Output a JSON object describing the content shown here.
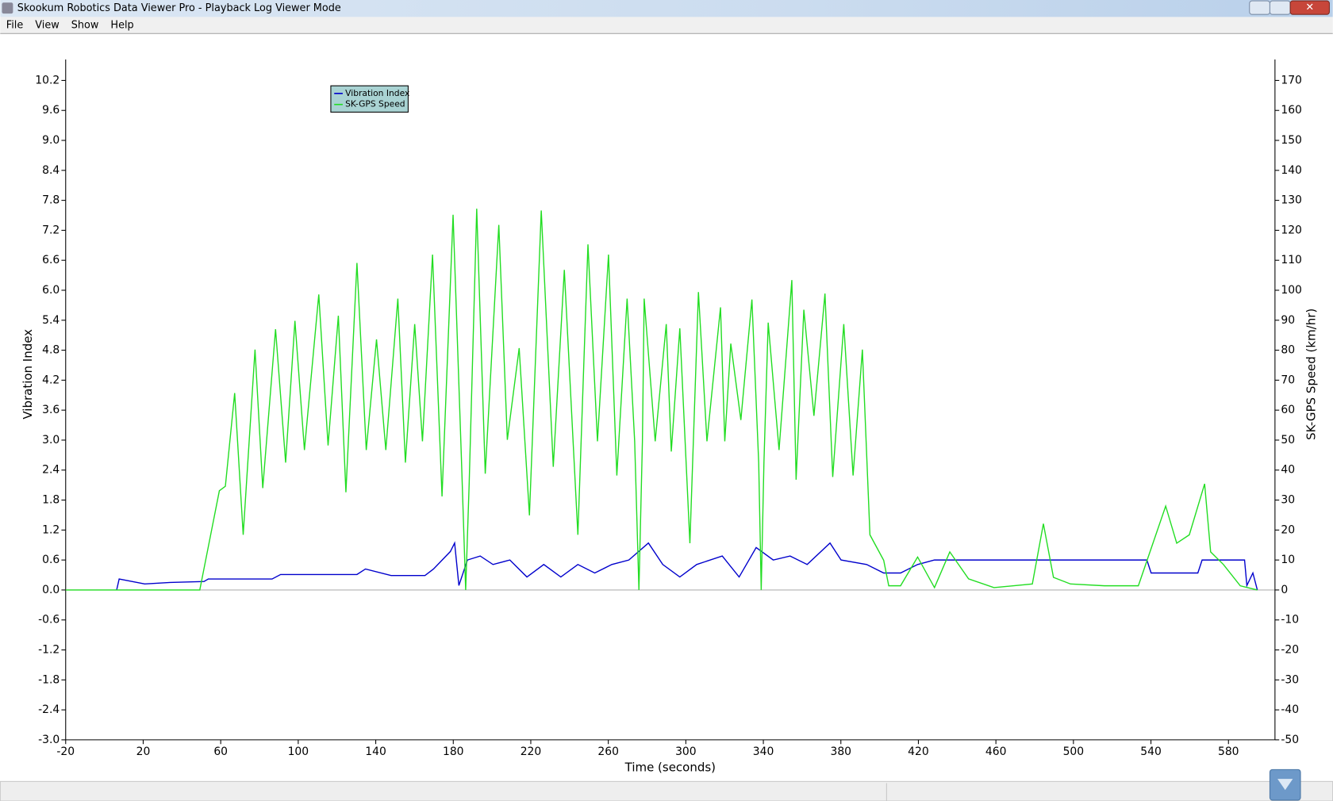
{
  "window": {
    "title": "Skookum Robotics Data Viewer Pro - Playback Log Viewer Mode",
    "menu": [
      "File",
      "View",
      "Show",
      "Help"
    ]
  },
  "chart_data": {
    "type": "line",
    "xlabel": "Time (seconds)",
    "ylabel": "Vibration Index",
    "y2label": "SK-GPS Speed (km/hr)",
    "xlim": [
      -20,
      604
    ],
    "ylim": [
      -3,
      10.62
    ],
    "y2lim": [
      -50,
      177
    ],
    "xticks": [
      -20,
      20,
      60,
      100,
      140,
      180,
      220,
      260,
      300,
      340,
      380,
      420,
      460,
      500,
      540,
      580
    ],
    "yticks": [
      {
        "value": -3,
        "label": "-3.0"
      },
      -2.4,
      -1.8,
      -1.2,
      -0.6,
      {
        "value": 0,
        "label": "0.0"
      },
      0.6,
      1.2,
      1.8,
      2.4,
      {
        "value": 3,
        "label": "3.0"
      },
      3.6,
      4.2,
      4.8,
      5.4,
      {
        "value": 6,
        "label": "6.0"
      },
      6.6,
      7.2,
      7.8,
      8.4,
      {
        "value": 9,
        "label": "9.0"
      },
      9.6,
      10.2
    ],
    "y2ticks": [
      -50,
      -40,
      -30,
      -20,
      -10,
      0,
      10,
      20,
      30,
      40,
      50,
      60,
      70,
      80,
      90,
      100,
      110,
      120,
      130,
      140,
      150,
      160,
      170
    ],
    "legend": "upper-left",
    "series": [
      {
        "name": "Vibration Index",
        "color": "#0000cc",
        "axis": "y",
        "x": [
          6.3,
          7.6,
          20.8,
          33.9,
          51.4,
          53.6,
          86.5,
          90.9,
          130.3,
          134.7,
          147.9,
          165.4,
          169.8,
          178.5,
          180.7,
          182.9,
          187.3,
          193.9,
          200.5,
          209.2,
          218.0,
          226.7,
          235.5,
          244.3,
          253.0,
          261.8,
          270.6,
          280.7,
          288.1,
          296.9,
          305.6,
          318.8,
          327.5,
          336.3,
          345.1,
          353.8,
          362.6,
          374.4,
          380.1,
          393.3,
          402.1,
          410.8,
          419.6,
          428.3,
          537.9,
          540.1,
          564.2,
          566.4,
          588.3,
          589.5,
          592.6,
          594.9
        ],
        "values": [
          0,
          0.22,
          0.12,
          0.15,
          0.17,
          0.22,
          0.22,
          0.31,
          0.31,
          0.42,
          0.29,
          0.29,
          0.42,
          0.77,
          0.94,
          0.09,
          0.6,
          0.68,
          0.51,
          0.6,
          0.26,
          0.51,
          0.26,
          0.51,
          0.34,
          0.51,
          0.6,
          0.94,
          0.51,
          0.26,
          0.51,
          0.68,
          0.26,
          0.85,
          0.6,
          0.68,
          0.51,
          0.94,
          0.6,
          0.51,
          0.34,
          0.34,
          0.51,
          0.6,
          0.6,
          0.34,
          0.34,
          0.6,
          0.6,
          0.09,
          0.34,
          0
        ]
      },
      {
        "name": "SK-GPS Speed",
        "color": "#22dd22",
        "axis": "y2",
        "x": [
          -20,
          49.2,
          59.3,
          62.4,
          67.2,
          71.6,
          77.7,
          81.7,
          88.3,
          93.5,
          98.3,
          103.2,
          110.6,
          115.4,
          120.7,
          124.6,
          130.3,
          135.1,
          140.4,
          145.2,
          151.4,
          155.3,
          160.1,
          164.1,
          169.3,
          174.2,
          179.9,
          184.2,
          186.4,
          188.2,
          192.1,
          196.5,
          203.5,
          207.9,
          214.0,
          219.3,
          225.4,
          231.6,
          237.3,
          244.3,
          249.5,
          254.4,
          260.1,
          264.4,
          269.7,
          273.6,
          275.8,
          277.6,
          278.5,
          284.2,
          289.9,
          292.5,
          296.9,
          302.1,
          306.5,
          310.9,
          317.9,
          320.1,
          323.2,
          328.4,
          334.1,
          337.6,
          338.9,
          340.3,
          342.5,
          348.1,
          354.7,
          356.9,
          360.9,
          366.1,
          371.8,
          375.8,
          381.5,
          386.3,
          391.1,
          395.0,
          402.1,
          404.7,
          410.8,
          419.6,
          428.3,
          436.2,
          445.9,
          459.0,
          478.8,
          484.5,
          489.7,
          498.5,
          516.0,
          533.5,
          547.6,
          553.3,
          559.8,
          567.7,
          570.8,
          577.4,
          586.1,
          594.9
        ],
        "values": [
          0,
          0,
          33.1,
          34.6,
          65.7,
          18.4,
          80.2,
          34.0,
          87.0,
          42.5,
          89.8,
          46.7,
          98.6,
          48.2,
          91.5,
          32.6,
          109.1,
          46.7,
          83.6,
          46.7,
          97.2,
          42.5,
          88.7,
          49.6,
          111.9,
          31.2,
          125.2,
          43.9,
          0,
          35.4,
          127.2,
          38.8,
          121.8,
          50.1,
          80.7,
          24.9,
          126.6,
          41.1,
          106.8,
          18.4,
          115.3,
          49.6,
          111.9,
          38.2,
          97.2,
          49.6,
          0,
          49.6,
          97.2,
          49.6,
          88.7,
          46.2,
          87.3,
          15.6,
          99.4,
          49.6,
          94.3,
          49.6,
          82.2,
          56.7,
          96.9,
          42.5,
          0,
          42.5,
          89.2,
          46.7,
          103.4,
          36.8,
          93.5,
          58.1,
          98.9,
          37.7,
          88.7,
          38.2,
          80.2,
          18.4,
          9.9,
          1.4,
          1.4,
          11.0,
          0.8,
          12.7,
          3.7,
          0.8,
          2.0,
          22.1,
          4.2,
          2.0,
          1.4,
          1.4,
          28.0,
          15.6,
          18.4,
          35.4,
          12.7,
          8.5,
          1.4,
          0
        ]
      }
    ]
  }
}
